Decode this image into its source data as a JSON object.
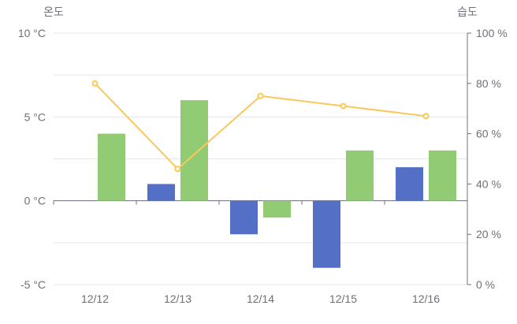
{
  "chart_data": {
    "type": "bar",
    "categories": [
      "12/12",
      "12/13",
      "12/14",
      "12/15",
      "12/16"
    ],
    "series": [
      {
        "type": "bar",
        "axis": "left",
        "values": [
          0,
          1,
          -2,
          -4,
          2
        ],
        "color": "#5470c6"
      },
      {
        "type": "bar",
        "axis": "left",
        "values": [
          4,
          6,
          -1,
          3,
          3
        ],
        "color": "#91cc75"
      },
      {
        "type": "line",
        "axis": "right",
        "values": [
          80,
          46,
          75,
          71,
          67
        ],
        "color": "#fac858"
      }
    ],
    "y_left": {
      "title": "온도",
      "range": [
        -5,
        10
      ],
      "ticks": [
        -5,
        0,
        5,
        10
      ],
      "tick_labels": [
        "-5 °C",
        "0 °C",
        "5 °C",
        "10 °C"
      ]
    },
    "y_right": {
      "title": "습도",
      "range": [
        0,
        100
      ],
      "ticks": [
        0,
        20,
        40,
        60,
        80,
        100
      ],
      "tick_labels": [
        "0 %",
        "20 %",
        "40 %",
        "60 %",
        "80 %",
        "100 %"
      ]
    },
    "grid": true,
    "legend": "none"
  }
}
